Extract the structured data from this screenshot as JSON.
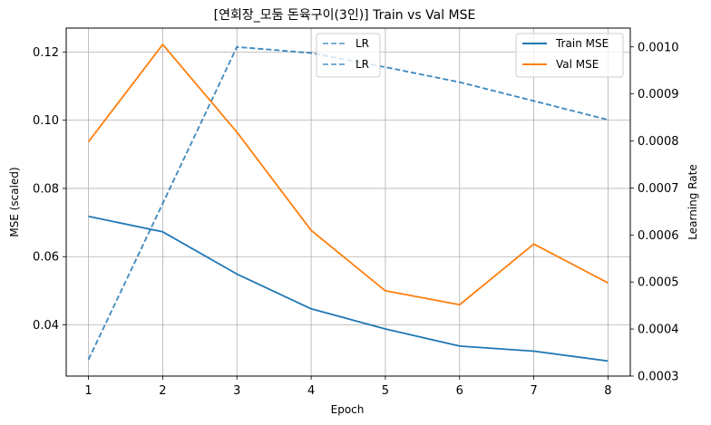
{
  "chart_data": {
    "type": "line",
    "title": "[연회장_모둠 돈육구이(3인)] Train vs Val MSE",
    "xlabel": "Epoch",
    "ylabel": "MSE (scaled)",
    "y2label": "Learning Rate",
    "x": [
      1,
      2,
      3,
      4,
      5,
      6,
      7,
      8
    ],
    "xlim": [
      0.7,
      8.3
    ],
    "ylim": [
      0.025,
      0.127
    ],
    "y2lim": [
      0.0003,
      0.00104
    ],
    "yticks": [
      "0.04",
      "0.06",
      "0.08",
      "0.10",
      "0.12"
    ],
    "y2ticks": [
      "0.0003",
      "0.0004",
      "0.0005",
      "0.0006",
      "0.0007",
      "0.0008",
      "0.0009",
      "0.0010"
    ],
    "grid": true,
    "series": [
      {
        "name": "Train MSE",
        "axis": "left",
        "color": "#1f77b4",
        "dash": false,
        "values": [
          0.0718,
          0.0673,
          0.0549,
          0.0447,
          0.0388,
          0.0338,
          0.0323,
          0.0294
        ]
      },
      {
        "name": "Val MSE",
        "axis": "left",
        "color": "#ff7f0e",
        "dash": false,
        "values": [
          0.0937,
          0.1222,
          0.0965,
          0.0677,
          0.05,
          0.0459,
          0.0637,
          0.0523
        ]
      }
    ],
    "lr_series": [
      {
        "name": "LR",
        "axis": "right",
        "color": "#1f77b4",
        "dash": true,
        "values": [
          0.000335,
          0.000667,
          0.001,
          0.000987,
          0.000957,
          0.000925,
          0.000885,
          0.000845
        ]
      },
      {
        "name": "LR",
        "axis": "right",
        "color": "#1f77b4",
        "dash": true,
        "values": [
          0.000335,
          0.000667,
          0.001,
          0.000987,
          0.000957,
          0.000925,
          0.000885,
          0.000845
        ]
      }
    ],
    "legend_left": {
      "placement": "top-center",
      "entries": [
        "LR",
        "LR"
      ]
    },
    "legend_right": {
      "placement": "top-right",
      "entries": [
        "Train MSE",
        "Val MSE"
      ]
    }
  }
}
